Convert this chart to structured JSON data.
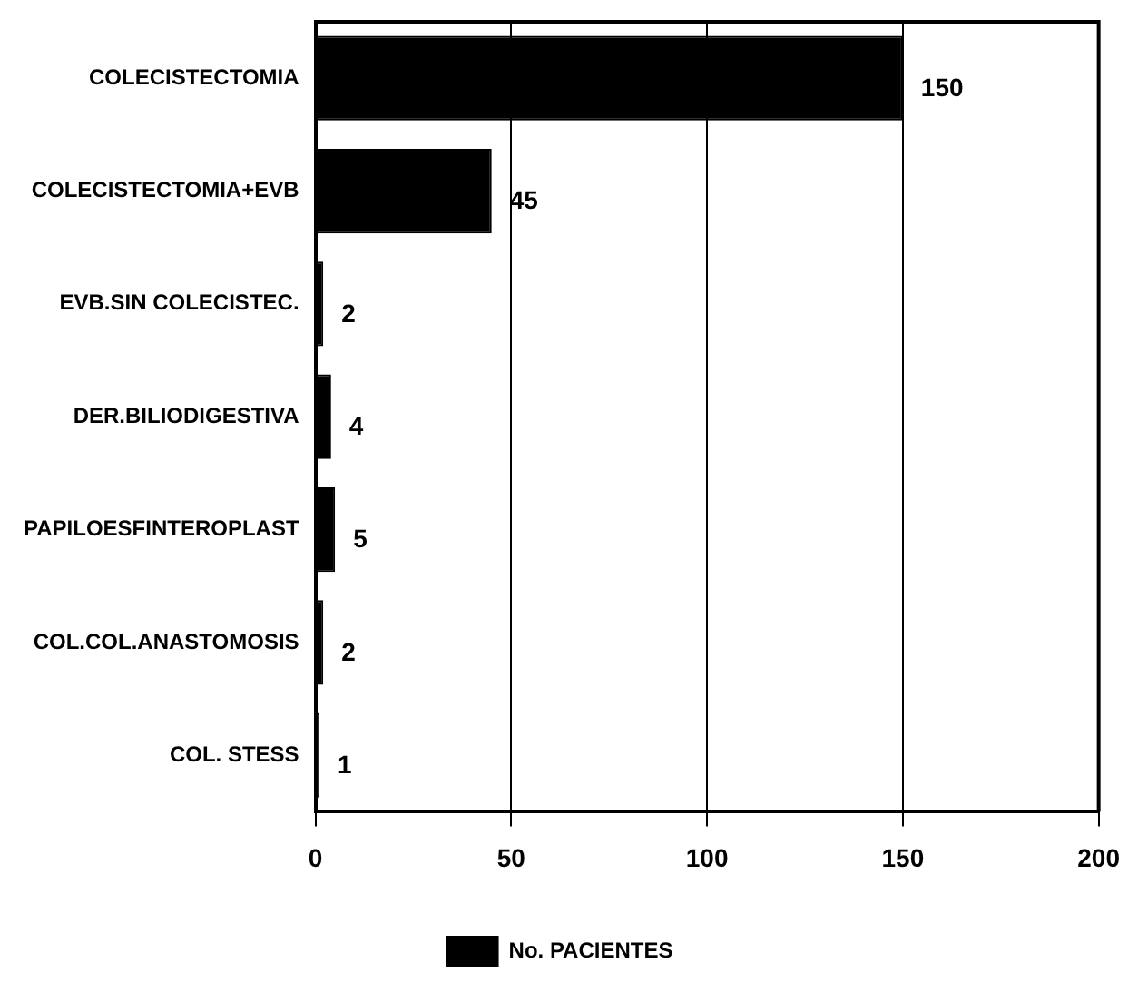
{
  "chart_data": {
    "type": "bar",
    "orientation": "horizontal",
    "categories": [
      "COLECISTECTOMIA",
      "COLECISTECTOMIA+EVB",
      "EVB.SIN COLECISTEC.",
      "DER.BILIODIGESTIVA",
      "PAPILOESFINTEROPLAST",
      "COL.COL.ANASTOMOSIS",
      "COL. STESS"
    ],
    "series": [
      {
        "name": "No. PACIENTES",
        "color": "#000000",
        "values": [
          150,
          45,
          2,
          4,
          5,
          2,
          1
        ]
      }
    ],
    "xlim": [
      0,
      200
    ],
    "xticks": [
      0,
      50,
      100,
      150,
      200
    ],
    "grid": "x",
    "legend": "bottom",
    "data_labels": true
  }
}
